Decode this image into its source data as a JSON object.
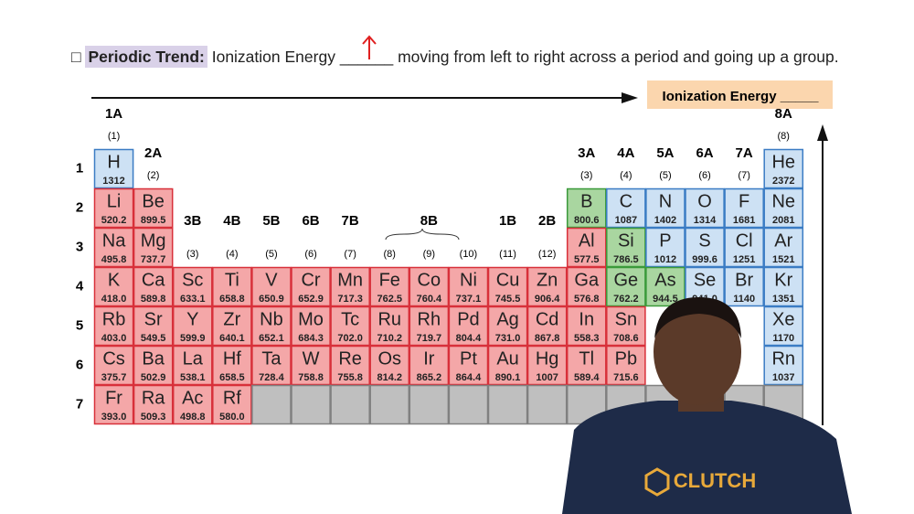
{
  "header": {
    "checkbox": "□",
    "label": "Periodic Trend:",
    "text": "Ionization Energy",
    "blank": "______",
    "rest": "moving from left to right across a period and going up a group."
  },
  "trend_box": "Ionization Energy _____",
  "shirt_text": "CLUTCH",
  "periods": [
    "1",
    "2",
    "3",
    "4",
    "5",
    "6",
    "7"
  ],
  "groups": [
    {
      "label": "1A",
      "number": "(1)"
    },
    {
      "label": "2A",
      "number": "(2)"
    },
    {
      "label": "3B",
      "number": "(3)"
    },
    {
      "label": "4B",
      "number": "(4)"
    },
    {
      "label": "5B",
      "number": "(5)"
    },
    {
      "label": "6B",
      "number": "(6)"
    },
    {
      "label": "7B",
      "number": "(7)"
    },
    {
      "number": "(8)"
    },
    {
      "label": "8B",
      "number": "(9)"
    },
    {
      "number": "(10)"
    },
    {
      "label": "1B",
      "number": "(11)"
    },
    {
      "label": "2B",
      "number": "(12)"
    },
    {
      "label": "3A",
      "number": "(3)"
    },
    {
      "label": "4A",
      "number": "(4)"
    },
    {
      "label": "5A",
      "number": "(5)"
    },
    {
      "label": "6A",
      "number": "(6)"
    },
    {
      "label": "7A",
      "number": "(7)"
    },
    {
      "label": "8A",
      "number": "(8)"
    }
  ],
  "rows": [
    [
      {
        "symbol": "H",
        "value": "1312",
        "color": "#cde1f4"
      },
      null,
      null,
      null,
      null,
      null,
      null,
      null,
      null,
      null,
      null,
      null,
      null,
      null,
      null,
      null,
      null,
      {
        "symbol": "He",
        "value": "2372",
        "color": "#cde1f4"
      }
    ],
    [
      {
        "symbol": "Li",
        "value": "520.2",
        "color": "#f4a7a8"
      },
      {
        "symbol": "Be",
        "value": "899.5",
        "color": "#f4a7a8"
      },
      null,
      null,
      null,
      null,
      null,
      null,
      null,
      null,
      null,
      null,
      {
        "symbol": "B",
        "value": "800.6",
        "color": "#a9d6a0"
      },
      {
        "symbol": "C",
        "value": "1087",
        "color": "#cde1f4"
      },
      {
        "symbol": "N",
        "value": "1402",
        "color": "#cde1f4"
      },
      {
        "symbol": "O",
        "value": "1314",
        "color": "#cde1f4"
      },
      {
        "symbol": "F",
        "value": "1681",
        "color": "#cde1f4"
      },
      {
        "symbol": "Ne",
        "value": "2081",
        "color": "#cde1f4"
      }
    ],
    [
      {
        "symbol": "Na",
        "value": "495.8",
        "color": "#f4a7a8"
      },
      {
        "symbol": "Mg",
        "value": "737.7",
        "color": "#f4a7a8"
      },
      null,
      null,
      null,
      null,
      null,
      null,
      null,
      null,
      null,
      null,
      {
        "symbol": "Al",
        "value": "577.5",
        "color": "#f4a7a8"
      },
      {
        "symbol": "Si",
        "value": "786.5",
        "color": "#a9d6a0"
      },
      {
        "symbol": "P",
        "value": "1012",
        "color": "#cde1f4"
      },
      {
        "symbol": "S",
        "value": "999.6",
        "color": "#cde1f4"
      },
      {
        "symbol": "Cl",
        "value": "1251",
        "color": "#cde1f4"
      },
      {
        "symbol": "Ar",
        "value": "1521",
        "color": "#cde1f4"
      }
    ],
    [
      {
        "symbol": "K",
        "value": "418.0",
        "color": "#f4a7a8"
      },
      {
        "symbol": "Ca",
        "value": "589.8",
        "color": "#f4a7a8"
      },
      {
        "symbol": "Sc",
        "value": "633.1",
        "color": "#f4a7a8"
      },
      {
        "symbol": "Ti",
        "value": "658.8",
        "color": "#f4a7a8"
      },
      {
        "symbol": "V",
        "value": "650.9",
        "color": "#f4a7a8"
      },
      {
        "symbol": "Cr",
        "value": "652.9",
        "color": "#f4a7a8"
      },
      {
        "symbol": "Mn",
        "value": "717.3",
        "color": "#f4a7a8"
      },
      {
        "symbol": "Fe",
        "value": "762.5",
        "color": "#f4a7a8"
      },
      {
        "symbol": "Co",
        "value": "760.4",
        "color": "#f4a7a8"
      },
      {
        "symbol": "Ni",
        "value": "737.1",
        "color": "#f4a7a8"
      },
      {
        "symbol": "Cu",
        "value": "745.5",
        "color": "#f4a7a8"
      },
      {
        "symbol": "Zn",
        "value": "906.4",
        "color": "#f4a7a8"
      },
      {
        "symbol": "Ga",
        "value": "576.8",
        "color": "#f4a7a8"
      },
      {
        "symbol": "Ge",
        "value": "762.2",
        "color": "#a9d6a0"
      },
      {
        "symbol": "As",
        "value": "944.5",
        "color": "#a9d6a0"
      },
      {
        "symbol": "Se",
        "value": "941.0",
        "color": "#cde1f4"
      },
      {
        "symbol": "Br",
        "value": "1140",
        "color": "#cde1f4"
      },
      {
        "symbol": "Kr",
        "value": "1351",
        "color": "#cde1f4"
      }
    ],
    [
      {
        "symbol": "Rb",
        "value": "403.0",
        "color": "#f4a7a8"
      },
      {
        "symbol": "Sr",
        "value": "549.5",
        "color": "#f4a7a8"
      },
      {
        "symbol": "Y",
        "value": "599.9",
        "color": "#f4a7a8"
      },
      {
        "symbol": "Zr",
        "value": "640.1",
        "color": "#f4a7a8"
      },
      {
        "symbol": "Nb",
        "value": "652.1",
        "color": "#f4a7a8"
      },
      {
        "symbol": "Mo",
        "value": "684.3",
        "color": "#f4a7a8"
      },
      {
        "symbol": "Tc",
        "value": "702.0",
        "color": "#f4a7a8"
      },
      {
        "symbol": "Ru",
        "value": "710.2",
        "color": "#f4a7a8"
      },
      {
        "symbol": "Rh",
        "value": "719.7",
        "color": "#f4a7a8"
      },
      {
        "symbol": "Pd",
        "value": "804.4",
        "color": "#f4a7a8"
      },
      {
        "symbol": "Ag",
        "value": "731.0",
        "color": "#f4a7a8"
      },
      {
        "symbol": "Cd",
        "value": "867.8",
        "color": "#f4a7a8"
      },
      {
        "symbol": "In",
        "value": "558.3",
        "color": "#f4a7a8"
      },
      {
        "symbol": "Sn",
        "value": "708.6",
        "color": "#f4a7a8"
      },
      null,
      null,
      null,
      {
        "symbol": "Xe",
        "value": "1170",
        "color": "#cde1f4"
      }
    ],
    [
      {
        "symbol": "Cs",
        "value": "375.7",
        "color": "#f4a7a8"
      },
      {
        "symbol": "Ba",
        "value": "502.9",
        "color": "#f4a7a8"
      },
      {
        "symbol": "La",
        "value": "538.1",
        "color": "#f4a7a8"
      },
      {
        "symbol": "Hf",
        "value": "658.5",
        "color": "#f4a7a8"
      },
      {
        "symbol": "Ta",
        "value": "728.4",
        "color": "#f4a7a8"
      },
      {
        "symbol": "W",
        "value": "758.8",
        "color": "#f4a7a8"
      },
      {
        "symbol": "Re",
        "value": "755.8",
        "color": "#f4a7a8"
      },
      {
        "symbol": "Os",
        "value": "814.2",
        "color": "#f4a7a8"
      },
      {
        "symbol": "Ir",
        "value": "865.2",
        "color": "#f4a7a8"
      },
      {
        "symbol": "Pt",
        "value": "864.4",
        "color": "#f4a7a8"
      },
      {
        "symbol": "Au",
        "value": "890.1",
        "color": "#f4a7a8"
      },
      {
        "symbol": "Hg",
        "value": "1007",
        "color": "#f4a7a8"
      },
      {
        "symbol": "Tl",
        "value": "589.4",
        "color": "#f4a7a8"
      },
      {
        "symbol": "Pb",
        "value": "715.6",
        "color": "#f4a7a8"
      },
      null,
      null,
      null,
      {
        "symbol": "Rn",
        "value": "1037",
        "color": "#cde1f4"
      }
    ],
    [
      {
        "symbol": "Fr",
        "value": "393.0",
        "color": "#f4a7a8"
      },
      {
        "symbol": "Ra",
        "value": "509.3",
        "color": "#f4a7a8"
      },
      {
        "symbol": "Ac",
        "value": "498.8",
        "color": "#f4a7a8"
      },
      {
        "symbol": "Rf",
        "value": "580.0",
        "color": "#f4a7a8"
      },
      {
        "color": "#bfbfbf"
      },
      {
        "color": "#bfbfbf"
      },
      {
        "color": "#bfbfbf"
      },
      {
        "color": "#bfbfbf"
      },
      {
        "color": "#bfbfbf"
      },
      {
        "color": "#bfbfbf"
      },
      {
        "color": "#bfbfbf"
      },
      {
        "color": "#bfbfbf"
      },
      {
        "color": "#bfbfbf"
      },
      {
        "color": "#bfbfbf"
      },
      {
        "color": "#bfbfbf"
      },
      {
        "color": "#bfbfbf"
      },
      {
        "color": "#bfbfbf"
      },
      {
        "color": "#bfbfbf"
      }
    ]
  ]
}
